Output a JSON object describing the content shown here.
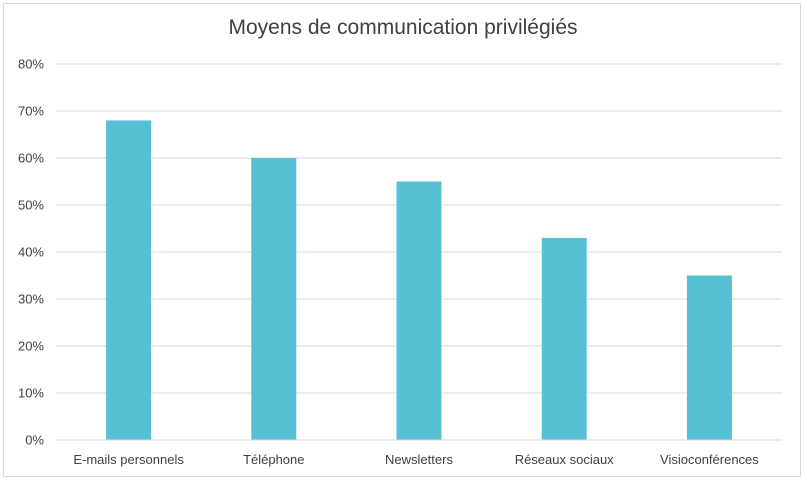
{
  "chart_data": {
    "type": "bar",
    "title": "Moyens de communication privilégiés",
    "categories": [
      "E-mails personnels",
      "Téléphone",
      "Newsletters",
      "Réseaux sociaux",
      "Visioconférences"
    ],
    "values": [
      0.68,
      0.6,
      0.55,
      0.43,
      0.35
    ],
    "y_ticks": [
      "0%",
      "10%",
      "20%",
      "30%",
      "40%",
      "50%",
      "60%",
      "70%",
      "80%"
    ],
    "ylim": [
      0,
      0.8
    ],
    "xlabel": "",
    "ylabel": "",
    "grid": true,
    "legend": "none",
    "bar_color": "#56c1d5",
    "grid_color": "#d9d9d9"
  }
}
